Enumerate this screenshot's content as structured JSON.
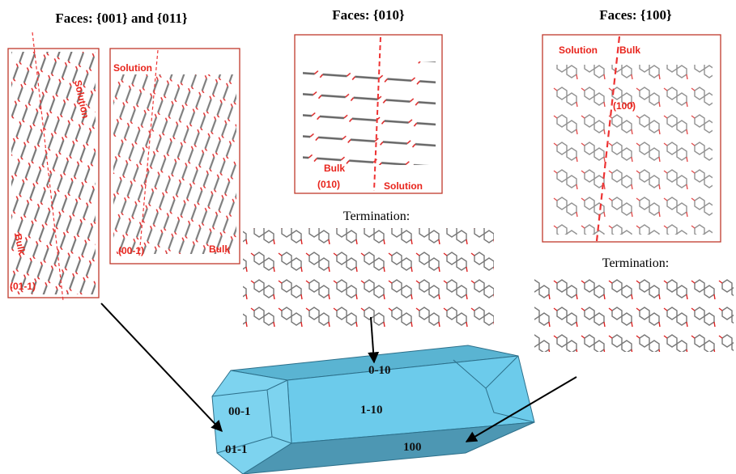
{
  "panels": [
    {
      "title": "Faces: {001} and {011}",
      "boxes": [
        {
          "labels": [
            "Solution",
            "Bulk",
            "(01-1)"
          ]
        },
        {
          "labels": [
            "Solution",
            "(00-1)",
            "Bulk"
          ]
        }
      ]
    },
    {
      "title": "Faces: {010}",
      "boxes": [
        {
          "labels": [
            "Bulk",
            "(010)",
            "Solution"
          ]
        }
      ],
      "termination": "Termination:"
    },
    {
      "title": "Faces: {100}",
      "boxes": [
        {
          "labels": [
            "Solution",
            "Bulk",
            "(100)"
          ]
        }
      ],
      "termination": "Termination:"
    }
  ],
  "crystal": {
    "faces": [
      "0-10",
      "00-1",
      "1-10",
      "01-1",
      "100"
    ]
  }
}
